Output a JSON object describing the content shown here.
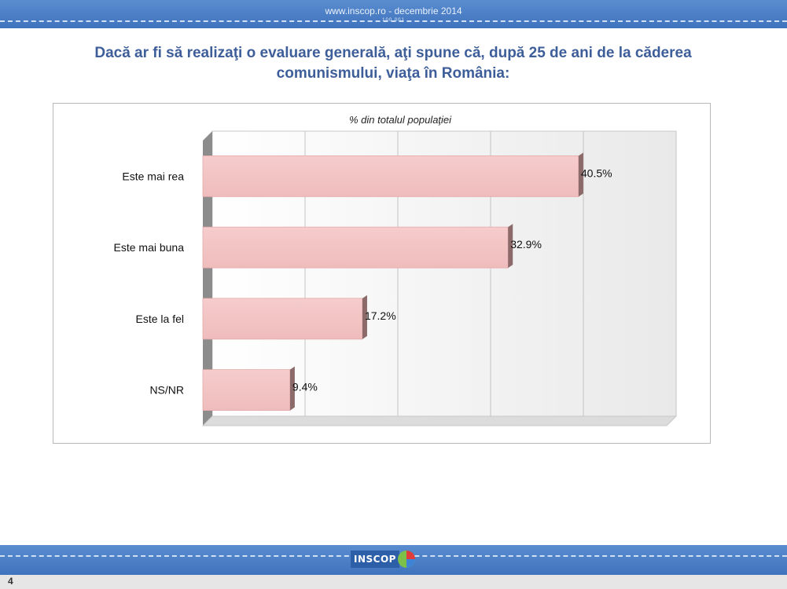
{
  "header": {
    "url": "www.inscop.ro   -   decembrie 2014",
    "small": "100.001"
  },
  "title": "Dacă ar fi să realizaţi o evaluare generală, aţi spune că, după 25 de ani de la căderea comunismului, viaţa în România:",
  "chart_data": {
    "type": "bar",
    "orientation": "horizontal",
    "subtitle": "% din totalul populaţiei",
    "categories": [
      "Este mai rea",
      "Este mai buna",
      "Este la fel",
      "NS/NR"
    ],
    "values": [
      40.5,
      32.9,
      17.2,
      9.4
    ],
    "value_labels": [
      "40.5%",
      "32.9%",
      "17.2%",
      "9.4%"
    ],
    "xlim": [
      0,
      50
    ],
    "grid": true,
    "legend": "none",
    "bar_color": "#f0c0c0"
  },
  "footer": {
    "logo_text": "INSCOP",
    "page_number": "4"
  }
}
